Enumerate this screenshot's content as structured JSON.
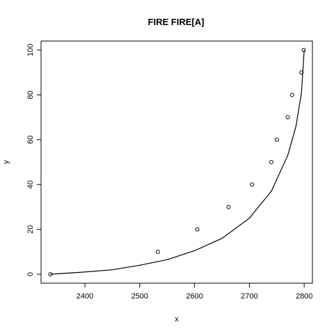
{
  "chart_data": {
    "type": "scatter",
    "title": "FIRE FIRE[A]",
    "xlabel": "x",
    "ylabel": "y",
    "xlim": [
      2320,
      2815
    ],
    "ylim": [
      -4,
      104
    ],
    "x_ticks": [
      2400,
      2500,
      2600,
      2700,
      2800
    ],
    "y_ticks": [
      0,
      20,
      40,
      60,
      80,
      100
    ],
    "grid": false,
    "series": [
      {
        "style": "points",
        "x": [
          2337,
          2533,
          2605,
          2662,
          2705,
          2740,
          2750,
          2770,
          2778,
          2795,
          2799
        ],
        "y": [
          0,
          10,
          20,
          30,
          40,
          50,
          60,
          70,
          80,
          90,
          100
        ]
      },
      {
        "style": "line",
        "x": [
          2337,
          2400,
          2450,
          2500,
          2550,
          2600,
          2650,
          2700,
          2740,
          2770,
          2785,
          2795,
          2800
        ],
        "y": [
          0,
          1,
          2,
          4,
          6.5,
          10.5,
          16,
          25,
          37,
          53,
          66,
          81,
          100
        ]
      }
    ]
  }
}
